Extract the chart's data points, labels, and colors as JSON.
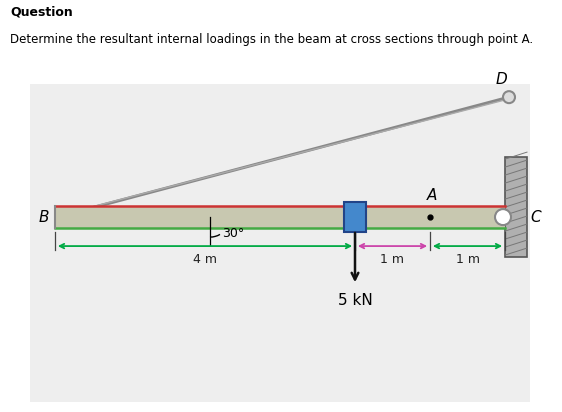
{
  "title_bold": "Question",
  "subtitle": "Determine the resultant internal loadings in the beam at cross sections through point A.",
  "bg_color": "#eeeeee",
  "beam_color": "#c8c8b0",
  "beam_border_top": "#cc3333",
  "beam_border_bot": "#44aa44",
  "wall_color": "#b0b0b0",
  "wall_hatch_color": "#777777",
  "cable_color": "#888888",
  "block_color": "#4488cc",
  "block_edge": "#224488",
  "force_arrow_color": "#111111",
  "dim_green_color": "#00aa44",
  "dim_pink_color": "#cc44aa",
  "dim_cyan_color": "#00aacc",
  "force_kN": "5 kN",
  "angle_label": "30°",
  "B_label": "B",
  "C_label": "C",
  "A_label": "A",
  "D_label": "D",
  "dim_4m": "4 m",
  "dim_1m_a": "1 m",
  "dim_1m_b": "1 m"
}
